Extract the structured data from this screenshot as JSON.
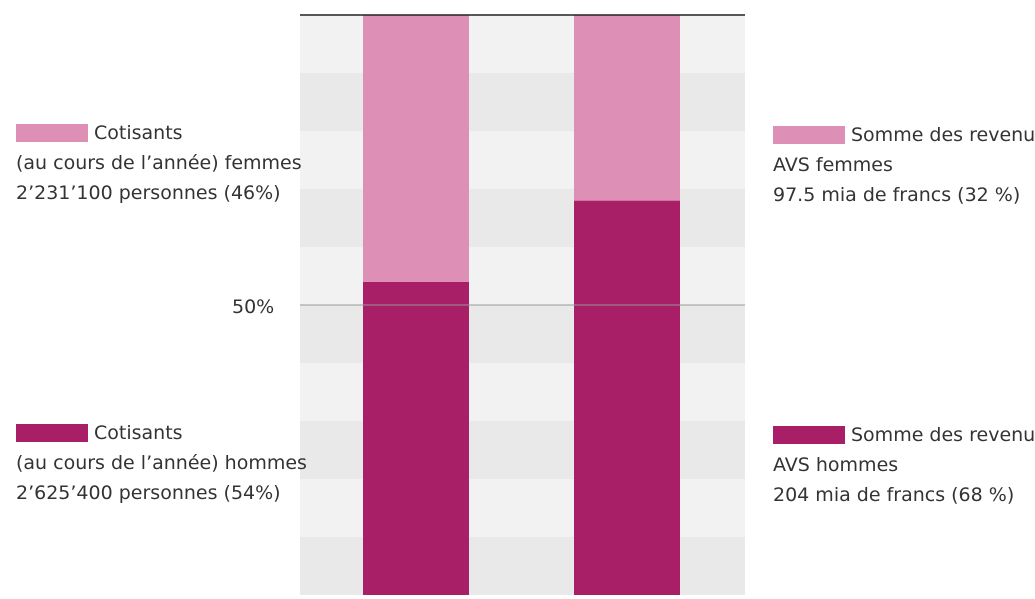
{
  "colors": {
    "femmes": "#de8fb5",
    "hommes": "#a81f68",
    "background_band": "#f2f2f2",
    "background_band_alt": "#e9e9e9",
    "axis_line": "#222222",
    "reference_line": "#999999"
  },
  "reference_label": "50%",
  "legends": {
    "cotisants_femmes": {
      "line1": "Cotisants",
      "line2": "(au cours de l’année) femmes",
      "line3": "2’231’100 personnes (46%)"
    },
    "cotisants_hommes": {
      "line1": "Cotisants",
      "line2": "(au cours de l’année) hommes",
      "line3": "2’625’400 personnes (54%)"
    },
    "revenus_femmes": {
      "line1": "Somme des revenus",
      "line2": "AVS femmes",
      "line3": "97.5 mia de francs (32 %)"
    },
    "revenus_hommes": {
      "line1": "Somme des revenus",
      "line2": "AVS hommes",
      "line3": "204 mia de francs (68 %)"
    }
  },
  "chart_data": {
    "type": "bar",
    "stacked": true,
    "percent_scale": true,
    "ylim": [
      0,
      100
    ],
    "reference_value": 50,
    "categories": [
      "Cotisants",
      "Somme des revenus AVS"
    ],
    "series": [
      {
        "name": "hommes",
        "values": [
          54,
          68
        ]
      },
      {
        "name": "femmes",
        "values": [
          46,
          32
        ]
      }
    ],
    "title": "",
    "xlabel": "",
    "ylabel": ""
  }
}
